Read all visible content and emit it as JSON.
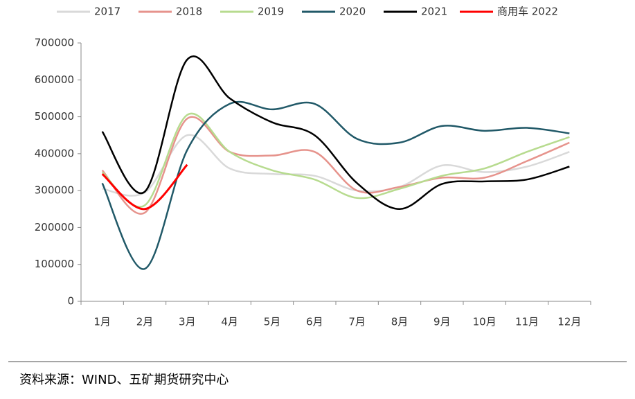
{
  "chart_data": {
    "type": "line",
    "categories": [
      "1月",
      "2月",
      "3月",
      "4月",
      "5月",
      "6月",
      "7月",
      "8月",
      "9月",
      "10月",
      "11月",
      "12月"
    ],
    "series": [
      {
        "name": "2017",
        "color": "#d9d9d9",
        "values": [
          305000,
          295000,
          450000,
          360000,
          345000,
          340000,
          300000,
          310000,
          368000,
          350000,
          365000,
          405000
        ]
      },
      {
        "name": "2018",
        "color": "#e6938c",
        "values": [
          355000,
          240000,
          495000,
          405000,
          395000,
          405000,
          300000,
          310000,
          335000,
          335000,
          380000,
          430000
        ]
      },
      {
        "name": "2019",
        "color": "#b7db8f",
        "values": [
          350000,
          260000,
          505000,
          405000,
          355000,
          330000,
          280000,
          305000,
          340000,
          360000,
          405000,
          445000
        ]
      },
      {
        "name": "2020",
        "color": "#215968",
        "values": [
          320000,
          88000,
          410000,
          535000,
          520000,
          535000,
          440000,
          430000,
          475000,
          462000,
          470000,
          455000
        ]
      },
      {
        "name": "2021",
        "color": "#000000",
        "values": [
          460000,
          297000,
          655000,
          550000,
          485000,
          450000,
          320000,
          250000,
          318000,
          325000,
          330000,
          365000
        ]
      },
      {
        "name": "商用车 2022",
        "color": "#ff0000",
        "values": [
          345000,
          250000,
          370000,
          null,
          null,
          null,
          null,
          null,
          null,
          null,
          null,
          null
        ]
      }
    ],
    "ylim": [
      0,
      700000
    ],
    "yticks": [
      0,
      100000,
      200000,
      300000,
      400000,
      500000,
      600000,
      700000
    ],
    "legend": "top",
    "source": "资料来源：WIND、五矿期货研究中心"
  }
}
